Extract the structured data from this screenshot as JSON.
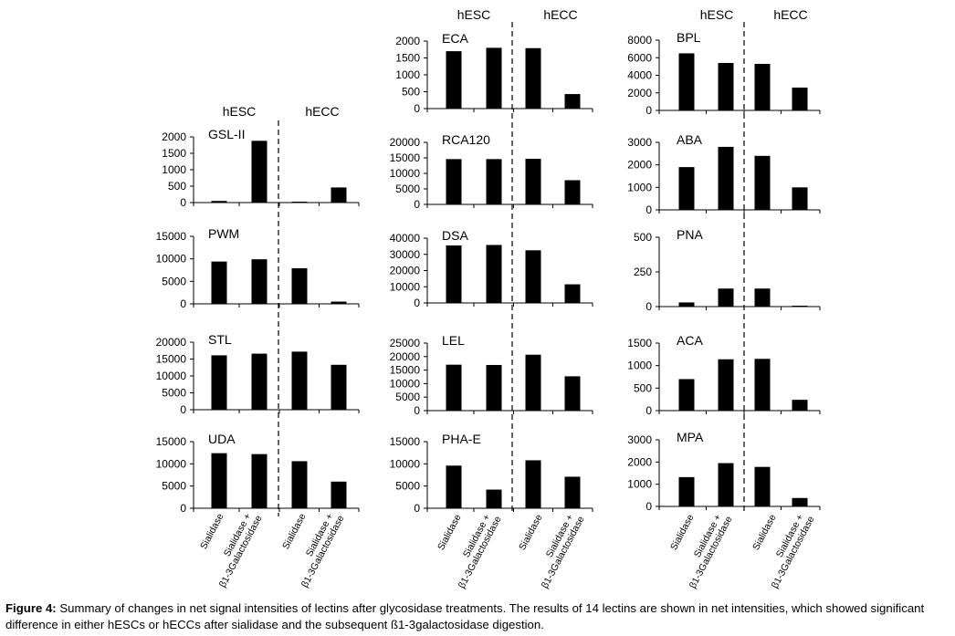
{
  "groups": {
    "hesc": "hESC",
    "hecc": "hECC"
  },
  "x_categories": [
    "Sialidase",
    "Sialidase +",
    "β1-3Galactosidase",
    "Sialidase",
    "Sialidase +",
    "β1-3Galactosidase"
  ],
  "caption": {
    "label": "Figure 4:",
    "text": " Summary of changes in net signal intensities of lectins after glycosidase treatments. The results of 14 lectins are shown in net intensities, which showed significant difference in either hESCs or hECCs after sialidase and the subsequent ß1-3galactosidase digestion."
  },
  "chart_data": [
    {
      "type": "bar",
      "title": "GSL-II",
      "categories": [
        "hESC Sialidase",
        "hESC Sialidase + β1-3Galactosidase",
        "hECC Sialidase",
        "hECC Sialidase + β1-3Galactosidase"
      ],
      "values": [
        50,
        1880,
        20,
        460
      ],
      "ylim": [
        0,
        2000
      ],
      "yticks": [
        0,
        500,
        1000,
        1500,
        2000
      ]
    },
    {
      "type": "bar",
      "title": "PWM",
      "categories": [
        "hESC Sialidase",
        "hESC Sialidase + β1-3Galactosidase",
        "hECC Sialidase",
        "hECC Sialidase + β1-3Galactosidase"
      ],
      "values": [
        9400,
        9900,
        7900,
        500
      ],
      "ylim": [
        0,
        15000
      ],
      "yticks": [
        0,
        5000,
        10000,
        15000
      ]
    },
    {
      "type": "bar",
      "title": "STL",
      "categories": [
        "hESC Sialidase",
        "hESC Sialidase + β1-3Galactosidase",
        "hECC Sialidase",
        "hECC Sialidase + β1-3Galactosidase"
      ],
      "values": [
        16100,
        16600,
        17200,
        13300
      ],
      "ylim": [
        0,
        20000
      ],
      "yticks": [
        0,
        5000,
        10000,
        15000,
        20000
      ]
    },
    {
      "type": "bar",
      "title": "UDA",
      "categories": [
        "hESC Sialidase",
        "hESC Sialidase + β1-3Galactosidase",
        "hECC Sialidase",
        "hECC Sialidase + β1-3Galactosidase"
      ],
      "values": [
        12400,
        12200,
        10600,
        6000
      ],
      "ylim": [
        0,
        15000
      ],
      "yticks": [
        0,
        5000,
        10000,
        15000
      ]
    },
    {
      "type": "bar",
      "title": "ECA",
      "categories": [
        "hESC Sialidase",
        "hESC Sialidase + β1-3Galactosidase",
        "hECC Sialidase",
        "hECC Sialidase + β1-3Galactosidase"
      ],
      "values": [
        1700,
        1800,
        1790,
        430
      ],
      "ylim": [
        0,
        2000
      ],
      "yticks": [
        0,
        500,
        1000,
        1500,
        2000
      ]
    },
    {
      "type": "bar",
      "title": "RCA120",
      "categories": [
        "hESC Sialidase",
        "hESC Sialidase + β1-3Galactosidase",
        "hECC Sialidase",
        "hECC Sialidase + β1-3Galactosidase"
      ],
      "values": [
        14600,
        14600,
        14700,
        7800
      ],
      "ylim": [
        0,
        20000
      ],
      "yticks": [
        0,
        5000,
        10000,
        15000,
        20000
      ]
    },
    {
      "type": "bar",
      "title": "DSA",
      "categories": [
        "hESC Sialidase",
        "hESC Sialidase + β1-3Galactosidase",
        "hECC Sialidase",
        "hECC Sialidase + β1-3Galactosidase"
      ],
      "values": [
        35500,
        35800,
        32500,
        11500
      ],
      "ylim": [
        0,
        40000
      ],
      "yticks": [
        0,
        10000,
        20000,
        30000,
        40000
      ]
    },
    {
      "type": "bar",
      "title": "LEL",
      "categories": [
        "hESC Sialidase",
        "hESC Sialidase + β1-3Galactosidase",
        "hECC Sialidase",
        "hECC Sialidase + β1-3Galactosidase"
      ],
      "values": [
        17000,
        16900,
        20700,
        12700
      ],
      "ylim": [
        0,
        25000
      ],
      "yticks": [
        0,
        5000,
        10000,
        15000,
        20000,
        25000
      ]
    },
    {
      "type": "bar",
      "title": "PHA-E",
      "categories": [
        "hESC Sialidase",
        "hESC Sialidase + β1-3Galactosidase",
        "hECC Sialidase",
        "hECC Sialidase + β1-3Galactosidase"
      ],
      "values": [
        9600,
        4200,
        10800,
        7100
      ],
      "ylim": [
        0,
        15000
      ],
      "yticks": [
        0,
        5000,
        10000,
        15000
      ]
    },
    {
      "type": "bar",
      "title": "BPL",
      "categories": [
        "hESC Sialidase",
        "hESC Sialidase + β1-3Galactosidase",
        "hECC Sialidase",
        "hECC Sialidase + β1-3Galactosidase"
      ],
      "values": [
        6500,
        5400,
        5300,
        2600
      ],
      "ylim": [
        0,
        8000
      ],
      "yticks": [
        0,
        2000,
        4000,
        6000,
        8000
      ]
    },
    {
      "type": "bar",
      "title": "ABA",
      "categories": [
        "hESC Sialidase",
        "hESC Sialidase + β1-3Galactosidase",
        "hECC Sialidase",
        "hECC Sialidase + β1-3Galactosidase"
      ],
      "values": [
        1900,
        2800,
        2400,
        1000
      ],
      "ylim": [
        0,
        3000
      ],
      "yticks": [
        0,
        1000,
        2000,
        3000
      ]
    },
    {
      "type": "bar",
      "title": "PNA",
      "categories": [
        "hESC Sialidase",
        "hESC Sialidase + β1-3Galactosidase",
        "hECC Sialidase",
        "hECC Sialidase + β1-3Galactosidase"
      ],
      "values": [
        30,
        130,
        130,
        5
      ],
      "ylim": [
        0,
        500
      ],
      "yticks": [
        0,
        250,
        500
      ]
    },
    {
      "type": "bar",
      "title": "ACA",
      "categories": [
        "hESC Sialidase",
        "hESC Sialidase + β1-3Galactosidase",
        "hECC Sialidase",
        "hECC Sialidase + β1-3Galactosidase"
      ],
      "values": [
        700,
        1140,
        1150,
        240
      ],
      "ylim": [
        0,
        1500
      ],
      "yticks": [
        0,
        500,
        1000,
        1500
      ]
    },
    {
      "type": "bar",
      "title": "MPA",
      "categories": [
        "hESC Sialidase",
        "hESC Sialidase + β1-3Galactosidase",
        "hECC Sialidase",
        "hECC Sialidase + β1-3Galactosidase"
      ],
      "values": [
        1320,
        1950,
        1780,
        380
      ],
      "ylim": [
        0,
        3000
      ],
      "yticks": [
        0,
        1000,
        2000,
        3000
      ]
    }
  ]
}
